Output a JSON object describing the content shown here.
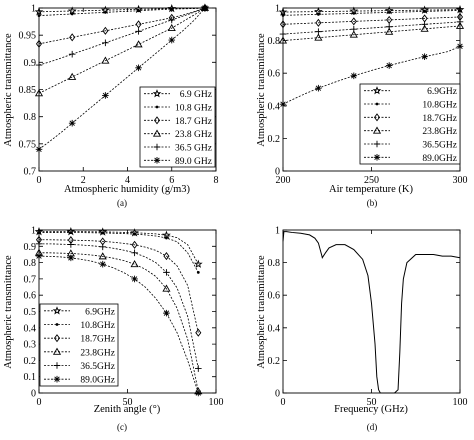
{
  "chart_data": [
    {
      "type": "line",
      "panel_label": "(a)",
      "xlabel": "Atmospheric humidity (g/m3)",
      "ylabel": "Atmospheric transmittance",
      "xlim": [
        0,
        8
      ],
      "ylim": [
        0.7,
        1.0
      ],
      "xticks": [
        "0",
        "2",
        "4",
        "6",
        "8"
      ],
      "yticks": [
        "0.7",
        "0.75",
        "0.8",
        "0.85",
        "0.9",
        "0.95",
        "1"
      ],
      "grid": false,
      "legend_position": "bottom-right",
      "x": [
        0,
        0.5,
        1,
        1.5,
        2,
        2.5,
        3,
        3.5,
        4,
        4.5,
        5,
        5.5,
        6,
        6.5,
        7,
        7.5
      ],
      "series": [
        {
          "name": "6.9 GHz",
          "marker": "star",
          "values": [
            0.993,
            0.9935,
            0.994,
            0.9945,
            0.995,
            0.9955,
            0.996,
            0.9965,
            0.997,
            0.9975,
            0.998,
            0.9985,
            0.999,
            0.9993,
            0.9996,
            1.0
          ]
        },
        {
          "name": "10.8 GHz",
          "marker": "dot",
          "values": [
            0.986,
            0.987,
            0.988,
            0.989,
            0.99,
            0.991,
            0.992,
            0.993,
            0.994,
            0.995,
            0.996,
            0.997,
            0.998,
            0.9985,
            0.999,
            1.0
          ]
        },
        {
          "name": "18.7 GHz",
          "marker": "diamond",
          "values": [
            0.934,
            0.938,
            0.942,
            0.946,
            0.95,
            0.954,
            0.958,
            0.962,
            0.966,
            0.97,
            0.974,
            0.978,
            0.982,
            0.987,
            0.993,
            1.0
          ]
        },
        {
          "name": "23.8 GHz",
          "marker": "triangle",
          "values": [
            0.843,
            0.853,
            0.863,
            0.873,
            0.883,
            0.893,
            0.903,
            0.913,
            0.923,
            0.933,
            0.943,
            0.953,
            0.963,
            0.975,
            0.987,
            1.0
          ]
        },
        {
          "name": "36.5 GHz",
          "marker": "plus",
          "values": [
            0.895,
            0.901,
            0.908,
            0.915,
            0.922,
            0.929,
            0.936,
            0.943,
            0.95,
            0.957,
            0.964,
            0.971,
            0.978,
            0.985,
            0.992,
            1.0
          ]
        },
        {
          "name": "89.0 GHz",
          "marker": "asterisk",
          "values": [
            0.74,
            0.755,
            0.771,
            0.788,
            0.805,
            0.822,
            0.839,
            0.856,
            0.873,
            0.89,
            0.907,
            0.924,
            0.941,
            0.958,
            0.977,
            1.0
          ]
        }
      ]
    },
    {
      "type": "line",
      "panel_label": "(b)",
      "xlabel": "Air temperature (K)",
      "ylabel": "Atmospheric transmittance",
      "xlim": [
        200,
        300
      ],
      "ylim": [
        0,
        1
      ],
      "xticks": [
        "200",
        "250",
        "300"
      ],
      "yticks": [
        "0",
        "0.2",
        "0.4",
        "0.6",
        "0.8",
        "1"
      ],
      "grid": false,
      "legend_position": "center-right",
      "x": [
        200,
        206.7,
        213.3,
        220,
        226.7,
        233.3,
        240,
        246.7,
        253.3,
        260,
        266.7,
        273.3,
        280,
        286.7,
        293.3,
        300
      ],
      "series": [
        {
          "name": "6.9GHz",
          "marker": "star",
          "values": [
            0.975,
            0.976,
            0.977,
            0.978,
            0.979,
            0.98,
            0.981,
            0.982,
            0.983,
            0.984,
            0.985,
            0.986,
            0.987,
            0.988,
            0.989,
            0.99
          ]
        },
        {
          "name": "10.8GHz",
          "marker": "dot",
          "values": [
            0.955,
            0.957,
            0.959,
            0.961,
            0.963,
            0.965,
            0.967,
            0.969,
            0.971,
            0.973,
            0.975,
            0.977,
            0.979,
            0.981,
            0.983,
            0.985
          ]
        },
        {
          "name": "18.7GHz",
          "marker": "diamond",
          "values": [
            0.9,
            0.903,
            0.906,
            0.909,
            0.912,
            0.915,
            0.918,
            0.921,
            0.924,
            0.927,
            0.93,
            0.933,
            0.936,
            0.939,
            0.942,
            0.945
          ]
        },
        {
          "name": "23.8GHz",
          "marker": "triangle",
          "values": [
            0.8,
            0.806,
            0.812,
            0.818,
            0.824,
            0.83,
            0.836,
            0.842,
            0.848,
            0.854,
            0.86,
            0.866,
            0.872,
            0.878,
            0.884,
            0.89
          ]
        },
        {
          "name": "36.5GHz",
          "marker": "plus",
          "values": [
            0.84,
            0.845,
            0.85,
            0.855,
            0.86,
            0.865,
            0.87,
            0.875,
            0.88,
            0.885,
            0.89,
            0.895,
            0.9,
            0.905,
            0.91,
            0.915
          ]
        },
        {
          "name": "89.0GHz",
          "marker": "asterisk",
          "values": [
            0.41,
            0.445,
            0.478,
            0.508,
            0.535,
            0.56,
            0.584,
            0.606,
            0.627,
            0.647,
            0.666,
            0.684,
            0.701,
            0.717,
            0.733,
            0.765
          ]
        }
      ]
    },
    {
      "type": "line",
      "panel_label": "(c)",
      "xlabel": "Zenith angle (°)",
      "ylabel": "Atmospheric transmittance",
      "xlim": [
        0,
        100
      ],
      "ylim": [
        0,
        1
      ],
      "xticks": [
        "0",
        "50",
        "100"
      ],
      "yticks": [
        "0",
        "0.1",
        "0.2",
        "0.3",
        "0.4",
        "0.5",
        "0.6",
        "0.7",
        "0.8",
        "0.9",
        "1"
      ],
      "grid": false,
      "legend_position": "center-left",
      "x": [
        0,
        6,
        12,
        18,
        24,
        30,
        36,
        42,
        48,
        54,
        60,
        66,
        72,
        78,
        84,
        90
      ],
      "series": [
        {
          "name": "6.9GHz",
          "marker": "star",
          "values": [
            0.99,
            0.99,
            0.99,
            0.99,
            0.99,
            0.989,
            0.988,
            0.987,
            0.985,
            0.983,
            0.98,
            0.976,
            0.968,
            0.953,
            0.91,
            0.79
          ]
        },
        {
          "name": "10.8GHz",
          "marker": "dot",
          "values": [
            0.985,
            0.985,
            0.985,
            0.984,
            0.984,
            0.983,
            0.982,
            0.98,
            0.978,
            0.975,
            0.97,
            0.963,
            0.951,
            0.928,
            0.86,
            0.74
          ]
        },
        {
          "name": "18.7GHz",
          "marker": "diamond",
          "values": [
            0.94,
            0.94,
            0.939,
            0.938,
            0.936,
            0.934,
            0.93,
            0.925,
            0.918,
            0.909,
            0.895,
            0.875,
            0.84,
            0.78,
            0.66,
            0.37
          ]
        },
        {
          "name": "23.8GHz",
          "marker": "triangle",
          "values": [
            0.86,
            0.86,
            0.858,
            0.856,
            0.852,
            0.846,
            0.838,
            0.827,
            0.812,
            0.79,
            0.76,
            0.715,
            0.64,
            0.52,
            0.33,
            0.01
          ]
        },
        {
          "name": "36.5GHz",
          "marker": "plus",
          "values": [
            0.915,
            0.915,
            0.913,
            0.911,
            0.908,
            0.903,
            0.897,
            0.888,
            0.876,
            0.86,
            0.835,
            0.8,
            0.74,
            0.645,
            0.47,
            0.15
          ]
        },
        {
          "name": "89.0GHz",
          "marker": "asterisk",
          "values": [
            0.84,
            0.838,
            0.835,
            0.829,
            0.82,
            0.808,
            0.79,
            0.768,
            0.738,
            0.7,
            0.65,
            0.58,
            0.49,
            0.37,
            0.2,
            0.0
          ]
        }
      ]
    },
    {
      "type": "line",
      "panel_label": "(d)",
      "xlabel": "Frequency (GHz)",
      "ylabel": "Atmospheric transmittance",
      "xlim": [
        0,
        100
      ],
      "ylim": [
        0,
        1
      ],
      "xticks": [
        "0",
        "50",
        "100"
      ],
      "yticks": [
        "0",
        "0.2",
        "0.4",
        "0.6",
        "0.8",
        "1"
      ],
      "grid": false,
      "x": [
        0,
        0.5,
        1,
        2,
        5,
        10,
        15,
        18,
        20,
        22,
        22.2,
        24,
        26,
        30,
        35,
        40,
        45,
        48,
        50,
        52,
        53,
        54,
        55,
        57,
        60,
        63,
        65,
        66,
        67,
        68,
        70,
        75,
        80,
        85,
        90,
        95,
        100
      ],
      "series": [
        {
          "name": "",
          "values": [
            0.93,
            0.99,
            0.99,
            0.99,
            0.985,
            0.98,
            0.97,
            0.95,
            0.92,
            0.84,
            0.83,
            0.86,
            0.89,
            0.91,
            0.91,
            0.88,
            0.82,
            0.72,
            0.55,
            0.3,
            0.1,
            0.02,
            0.0,
            0.0,
            0.0,
            0.0,
            0.02,
            0.25,
            0.55,
            0.7,
            0.8,
            0.85,
            0.85,
            0.85,
            0.84,
            0.84,
            0.83
          ]
        }
      ]
    }
  ]
}
